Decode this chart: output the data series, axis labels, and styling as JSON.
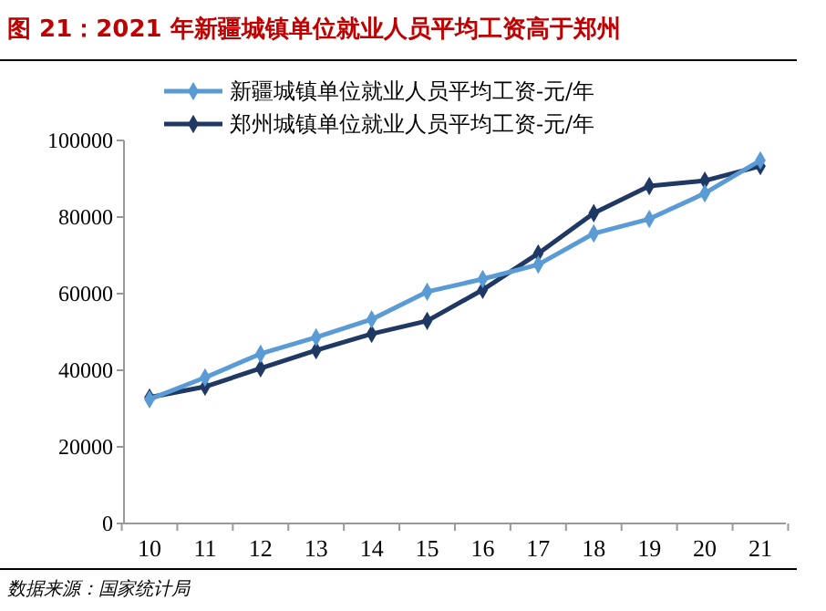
{
  "chart_data": {
    "type": "line",
    "title": "图 21：2021 年新疆城镇单位就业人员平均工资高于郑州",
    "categories": [
      "10",
      "11",
      "12",
      "13",
      "14",
      "15",
      "16",
      "17",
      "18",
      "19",
      "20",
      "21"
    ],
    "series": [
      {
        "name": "新疆城镇单位就业人员平均工资-元/年",
        "color": "#5b9bd5",
        "values": [
          32400,
          38100,
          44300,
          48600,
          53300,
          60500,
          63800,
          67600,
          75700,
          79500,
          86200,
          94800
        ]
      },
      {
        "name": "郑州城镇单位就业人员平均工资-元/年",
        "color": "#1f3864",
        "values": [
          32900,
          35700,
          40500,
          45200,
          49500,
          52900,
          61000,
          70500,
          81000,
          88100,
          89500,
          93300
        ]
      }
    ],
    "ylim": [
      0,
      100000
    ],
    "yticks": [
      0,
      20000,
      40000,
      60000,
      80000,
      100000
    ],
    "marker": "diamond",
    "legend": "top left",
    "grid": false,
    "annotations": [
      "数据来源：国家统计局"
    ]
  }
}
